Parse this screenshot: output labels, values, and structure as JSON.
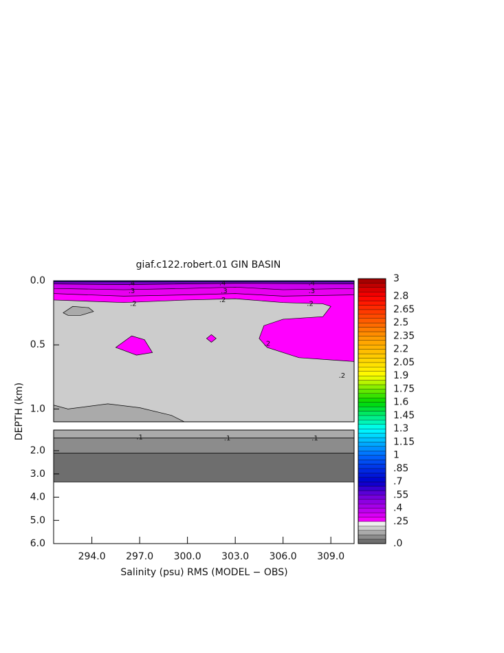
{
  "chart_data": {
    "type": "contour",
    "title": "giaf.c122.robert.01 GIN BASIN",
    "x_label": "Salinity (psu) RMS (MODEL − OBS)",
    "y_label": "DEPTH (km)",
    "xlim": [
      291.6,
      310.46
    ],
    "xticks": [
      {
        "value": 294,
        "label": "294.0"
      },
      {
        "value": 297,
        "label": "297.0"
      },
      {
        "value": 300,
        "label": "300.0"
      },
      {
        "value": 303,
        "label": "303.0"
      },
      {
        "value": 306,
        "label": "306.0"
      },
      {
        "value": 309,
        "label": "309.0"
      }
    ],
    "panels": [
      {
        "ylim": [
          0,
          1.1
        ],
        "yticks": [
          {
            "value": 0,
            "label": "0.0"
          },
          {
            "value": 0.5,
            "label": "0.5"
          },
          {
            "value": 1,
            "label": "1.0"
          }
        ],
        "regions": [
          {
            "color": "#cccccc",
            "points": [
              [
                291.6,
                0
              ],
              [
                310.46,
                0
              ],
              [
                310.46,
                1.1
              ],
              [
                291.6,
                1.1
              ]
            ]
          },
          {
            "color": "#ff00ff",
            "points": [
              [
                291.6,
                0
              ],
              [
                310.46,
                0
              ],
              [
                310.46,
                0.63
              ],
              [
                307,
                0.6
              ],
              [
                305,
                0.52
              ],
              [
                304.5,
                0.45
              ],
              [
                304.8,
                0.35
              ],
              [
                306,
                0.3
              ],
              [
                308.5,
                0.28
              ],
              [
                309,
                0.2
              ],
              [
                308.5,
                0.18
              ],
              [
                306,
                0.17
              ],
              [
                303,
                0.14
              ],
              [
                300,
                0.15
              ],
              [
                296,
                0.17
              ],
              [
                291.6,
                0.15
              ]
            ]
          },
          {
            "color": "#e800f0",
            "points": [
              [
                291.6,
                0
              ],
              [
                310.46,
                0
              ],
              [
                310.46,
                0.11
              ],
              [
                306,
                0.12
              ],
              [
                303,
                0.1
              ],
              [
                300,
                0.11
              ],
              [
                296,
                0.12
              ],
              [
                291.6,
                0.1
              ]
            ]
          },
          {
            "color": "#cc00ee",
            "points": [
              [
                291.6,
                0
              ],
              [
                310.46,
                0
              ],
              [
                310.46,
                0.06
              ],
              [
                306,
                0.07
              ],
              [
                303,
                0.05
              ],
              [
                300,
                0.06
              ],
              [
                296,
                0.07
              ],
              [
                291.6,
                0.06
              ]
            ]
          },
          {
            "color": "#7a00cc",
            "points": [
              [
                291.6,
                0
              ],
              [
                310.46,
                0
              ],
              [
                310.46,
                0.025
              ],
              [
                303,
                0.02
              ],
              [
                296,
                0.03
              ],
              [
                291.6,
                0.025
              ]
            ]
          },
          {
            "color": "#2020c0",
            "points": [
              [
                291.6,
                0
              ],
              [
                310.46,
                0
              ],
              [
                310.46,
                0.008
              ],
              [
                291.6,
                0.008
              ]
            ]
          },
          {
            "color": "#ff00ff",
            "points": [
              [
                295.5,
                0.52
              ],
              [
                296.5,
                0.43
              ],
              [
                297.3,
                0.46
              ],
              [
                297.8,
                0.56
              ],
              [
                296.8,
                0.58
              ]
            ]
          },
          {
            "color": "#ff00ff",
            "points": [
              [
                301.5,
                0.42
              ],
              [
                301.8,
                0.45
              ],
              [
                301.5,
                0.48
              ],
              [
                301.2,
                0.45
              ]
            ]
          },
          {
            "color": "#aaaaaa",
            "points": [
              [
                292.2,
                0.25
              ],
              [
                292.8,
                0.2
              ],
              [
                293.8,
                0.21
              ],
              [
                294.1,
                0.24
              ],
              [
                293.3,
                0.27
              ],
              [
                292.5,
                0.27
              ]
            ]
          },
          {
            "color": "#aaaaaa",
            "points": [
              [
                291.6,
                0.97
              ],
              [
                292.5,
                1.0
              ],
              [
                295,
                0.96
              ],
              [
                297,
                0.99
              ],
              [
                299,
                1.05
              ],
              [
                299.8,
                1.1
              ],
              [
                291.6,
                1.1
              ]
            ]
          }
        ],
        "contour_labels": [
          {
            "level": 0.4,
            "label": ".4",
            "x": 296.5,
            "depth": 0.02
          },
          {
            "level": 0.4,
            "label": ".4",
            "x": 302.2,
            "depth": 0.02
          },
          {
            "level": 0.4,
            "label": ".4",
            "x": 307.8,
            "depth": 0.02
          },
          {
            "level": 0.3,
            "label": ".3",
            "x": 296.5,
            "depth": 0.08
          },
          {
            "level": 0.3,
            "label": ".3",
            "x": 302.3,
            "depth": 0.08
          },
          {
            "level": 0.3,
            "label": ".3",
            "x": 307.8,
            "depth": 0.08
          },
          {
            "level": 0.2,
            "label": ".2",
            "x": 296.6,
            "depth": 0.18
          },
          {
            "level": 0.2,
            "label": ".2",
            "x": 302.2,
            "depth": 0.15
          },
          {
            "level": 0.2,
            "label": ".2",
            "x": 307.7,
            "depth": 0.18
          },
          {
            "level": 0.2,
            "label": ".2",
            "x": 305,
            "depth": 0.49
          },
          {
            "level": 0.2,
            "label": ".2",
            "x": 309.7,
            "depth": 0.74
          }
        ]
      },
      {
        "ylim": [
          1.11,
          6
        ],
        "yticks": [
          {
            "value": 2,
            "label": "2.0"
          },
          {
            "value": 3,
            "label": "3.0"
          },
          {
            "value": 4,
            "label": "4.0"
          },
          {
            "value": 5,
            "label": "5.0"
          },
          {
            "value": 6,
            "label": "6.0"
          }
        ],
        "regions": [
          {
            "color": "#aaaaaa",
            "points": [
              [
                291.6,
                1.11
              ],
              [
                310.46,
                1.11
              ],
              [
                310.46,
                1.45
              ],
              [
                291.6,
                1.45
              ]
            ]
          },
          {
            "color": "#8c8c8c",
            "points": [
              [
                291.6,
                1.45
              ],
              [
                310.46,
                1.45
              ],
              [
                310.46,
                2.1
              ],
              [
                291.6,
                2.1
              ]
            ]
          },
          {
            "color": "#6e6e6e",
            "points": [
              [
                291.6,
                2.1
              ],
              [
                310.46,
                2.1
              ],
              [
                310.46,
                3.35
              ],
              [
                291.6,
                3.35
              ]
            ]
          }
        ],
        "contour_labels": [
          {
            "level": 0.1,
            "label": ".1",
            "x": 297,
            "depth": 1.42
          },
          {
            "level": 0.1,
            "label": ".1",
            "x": 302.5,
            "depth": 1.47
          },
          {
            "level": 0.1,
            "label": ".1",
            "x": 308,
            "depth": 1.47
          }
        ]
      }
    ],
    "colorbar": {
      "lim": [
        0,
        3
      ],
      "ticks": [
        3,
        2.8,
        2.65,
        2.5,
        2.35,
        2.2,
        2.05,
        1.9,
        1.75,
        1.6,
        1.45,
        1.3,
        1.15,
        1,
        {
          "value": 0.85,
          "label": ".85"
        },
        {
          "value": 0.7,
          "label": ".7"
        },
        {
          "value": 0.55,
          "label": ".55"
        },
        {
          "value": 0.4,
          "label": ".4"
        },
        {
          "value": 0.25,
          "label": ".25"
        },
        {
          "value": 0,
          "label": ".0"
        }
      ]
    }
  }
}
